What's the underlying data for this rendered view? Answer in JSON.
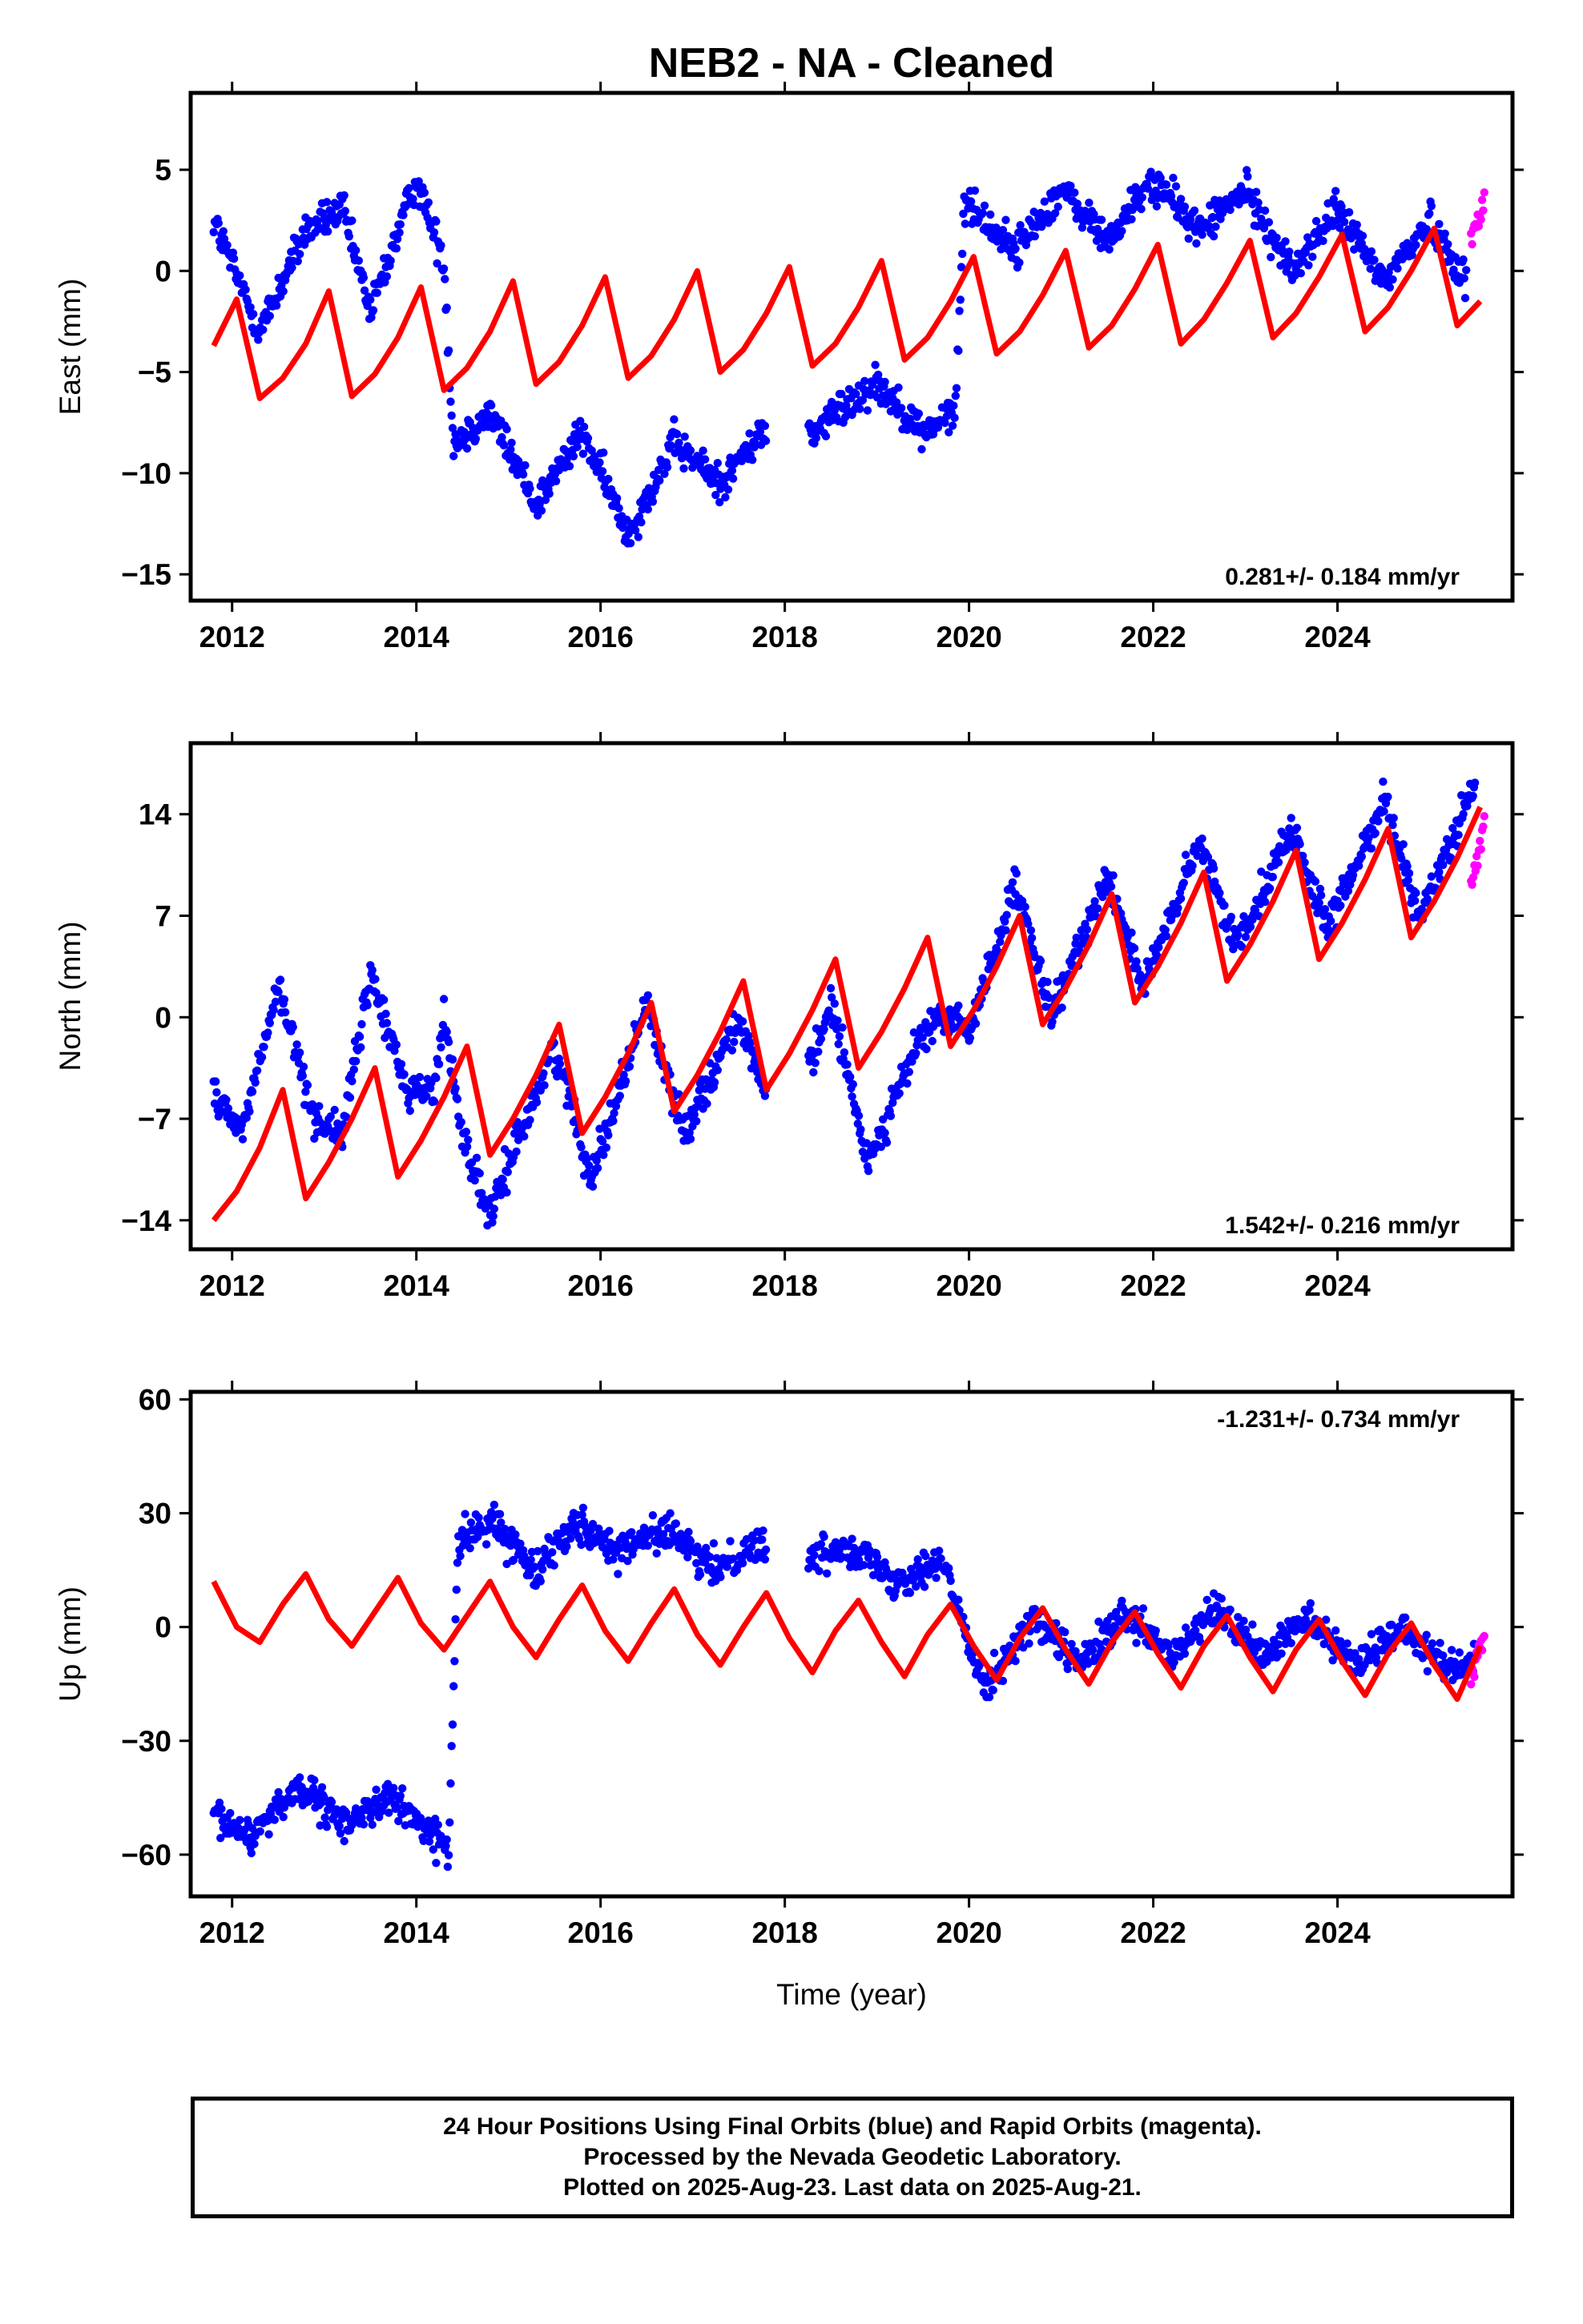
{
  "title": "NEB2  - NA - Cleaned",
  "colors": {
    "final": "#0000ff",
    "rapid": "#ff00ff",
    "model": "#ff0000",
    "frame": "#000000"
  },
  "xlabel": "Time (year)",
  "footer": {
    "line1": "24 Hour Positions Using Final Orbits (blue) and Rapid Orbits (magenta).",
    "line2": "Processed by the Nevada Geodetic Laboratory.",
    "line3": "Plotted on 2025-Aug-23. Last data on 2025-Aug-21."
  },
  "chart_data": [
    {
      "type": "scatter",
      "ylabel": "East (mm)",
      "xlim": [
        2011.55,
        2025.9
      ],
      "ylim": [
        -16.3,
        8.8
      ],
      "xticks": [
        2012,
        2014,
        2016,
        2018,
        2020,
        2022,
        2024
      ],
      "yticks": [
        -15,
        -10,
        -5,
        0,
        5
      ],
      "rate": "0.281+/- 0.184 mm/yr",
      "rate_position": "bottom-right",
      "series": [
        {
          "kind": "final",
          "t": [
            2011.8,
            2012.3,
            2012.8,
            2013.2,
            2013.5,
            2014.0,
            2014.3,
            2014.4,
            2014.8,
            2015.3,
            2015.8,
            2016.3,
            2016.8,
            2017.3,
            2017.75,
            2018.3,
            2018.7,
            2019.0,
            2019.5,
            2019.85,
            2019.95,
            2020.5,
            2021.0,
            2021.5,
            2022.0,
            2022.5,
            2023.0,
            2023.5,
            2024.0,
            2024.5,
            2025.0,
            2025.4
          ],
          "v": [
            2.5,
            -3.0,
            2.0,
            3.0,
            -2.0,
            4.5,
            0.5,
            -8.5,
            -7.0,
            -11.5,
            -8.0,
            -13.0,
            -8.5,
            -10.5,
            -8.0,
            -8.0,
            -6.5,
            -5.5,
            -8.0,
            -7.0,
            3.5,
            1.0,
            4.0,
            1.5,
            4.5,
            2.0,
            4.0,
            0.0,
            3.0,
            -0.5,
            2.5,
            -0.5
          ]
        },
        {
          "kind": "rapid",
          "t": [
            2025.45,
            2025.6
          ],
          "v": [
            1.5,
            3.5
          ]
        },
        {
          "kind": "model",
          "t": [
            2011.8,
            2012.05,
            2012.3,
            2012.55,
            2012.8,
            2013.05,
            2013.3,
            2013.55,
            2013.8,
            2014.05,
            2014.3,
            2014.55,
            2014.8,
            2015.05,
            2015.3,
            2015.55,
            2015.8,
            2016.05,
            2016.3,
            2016.55,
            2016.8,
            2017.05,
            2017.3,
            2017.55,
            2017.8,
            2018.05,
            2018.3,
            2018.55,
            2018.8,
            2019.05,
            2019.3,
            2019.55,
            2019.8,
            2020.05,
            2020.3,
            2020.55,
            2020.8,
            2021.05,
            2021.3,
            2021.55,
            2021.8,
            2022.05,
            2022.3,
            2022.55,
            2022.8,
            2023.05,
            2023.3,
            2023.55,
            2023.8,
            2024.05,
            2024.3,
            2024.55,
            2024.8,
            2025.05,
            2025.3,
            2025.55
          ],
          "v": [
            -3.7,
            -1.4,
            -6.3,
            -5.3,
            -3.6,
            -1.0,
            -6.2,
            -5.1,
            -3.3,
            -0.8,
            -5.9,
            -4.8,
            -3.0,
            -0.5,
            -5.6,
            -4.5,
            -2.7,
            -0.3,
            -5.3,
            -4.2,
            -2.4,
            0.0,
            -5.0,
            -3.9,
            -2.1,
            0.2,
            -4.7,
            -3.6,
            -1.8,
            0.5,
            -4.4,
            -3.3,
            -1.5,
            0.7,
            -4.1,
            -3.0,
            -1.2,
            1.0,
            -3.8,
            -2.7,
            -0.9,
            1.3,
            -3.6,
            -2.4,
            -0.6,
            1.5,
            -3.3,
            -2.1,
            -0.3,
            1.8,
            -3.0,
            -1.8,
            0.0,
            2.1,
            -2.7,
            -1.5
          ]
        }
      ]
    },
    {
      "type": "scatter",
      "ylabel": "North (mm)",
      "xlim": [
        2011.55,
        2025.9
      ],
      "ylim": [
        -16.0,
        18.9
      ],
      "xticks": [
        2012,
        2014,
        2016,
        2018,
        2020,
        2022,
        2024
      ],
      "yticks": [
        -14,
        -7,
        0,
        7,
        14
      ],
      "rate": "1.542+/- 0.216 mm/yr",
      "rate_position": "bottom-right",
      "series": [
        {
          "kind": "final",
          "t": [
            2011.8,
            2012.1,
            2012.5,
            2012.9,
            2013.2,
            2013.5,
            2013.9,
            2014.2,
            2014.3,
            2014.5,
            2014.8,
            2015.0,
            2015.5,
            2015.9,
            2016.5,
            2016.9,
            2017.5,
            2017.75,
            2018.3,
            2018.5,
            2018.9,
            2019.5,
            2019.8,
            2020.0,
            2020.5,
            2020.9,
            2021.5,
            2021.9,
            2022.5,
            2022.9,
            2023.5,
            2023.9,
            2024.5,
            2024.9,
            2025.5
          ],
          "v": [
            -5.0,
            -8.0,
            2.0,
            -7.0,
            -8.0,
            3.0,
            -5.0,
            -5.0,
            0.0,
            -8.0,
            -14.0,
            -10.0,
            -2.0,
            -11.0,
            1.0,
            -8.0,
            0.0,
            -5.0,
            -3.0,
            1.0,
            -10.0,
            -1.0,
            0.0,
            -1.0,
            9.0,
            0.0,
            10.0,
            2.0,
            12.0,
            5.0,
            13.0,
            6.0,
            15.0,
            7.0,
            16.0
          ]
        },
        {
          "kind": "rapid",
          "t": [
            2025.45,
            2025.6
          ],
          "v": [
            9.0,
            13.0
          ]
        },
        {
          "kind": "model",
          "t": [
            2011.8,
            2012.05,
            2012.3,
            2012.55,
            2012.8,
            2013.05,
            2013.3,
            2013.55,
            2013.8,
            2014.05,
            2014.3,
            2014.55,
            2014.8,
            2015.05,
            2015.3,
            2015.55,
            2015.8,
            2016.05,
            2016.3,
            2016.55,
            2016.8,
            2017.05,
            2017.3,
            2017.55,
            2017.8,
            2018.05,
            2018.3,
            2018.55,
            2018.8,
            2019.05,
            2019.3,
            2019.55,
            2019.8,
            2020.05,
            2020.3,
            2020.55,
            2020.8,
            2021.05,
            2021.3,
            2021.55,
            2021.8,
            2022.05,
            2022.3,
            2022.55,
            2022.8,
            2023.05,
            2023.3,
            2023.55,
            2023.8,
            2024.05,
            2024.3,
            2024.55,
            2024.8,
            2025.05,
            2025.3,
            2025.55
          ],
          "v": [
            -14.0,
            -12.0,
            -9.0,
            -5.0,
            -12.5,
            -10.0,
            -7.0,
            -3.5,
            -11.0,
            -8.5,
            -5.5,
            -2.0,
            -9.5,
            -7.0,
            -4.0,
            -0.5,
            -8.0,
            -5.5,
            -2.5,
            1.0,
            -6.5,
            -4.0,
            -1.0,
            2.5,
            -5.0,
            -2.5,
            0.5,
            4.0,
            -3.5,
            -1.0,
            2.0,
            5.5,
            -2.0,
            0.5,
            3.5,
            7.0,
            -0.5,
            2.0,
            5.0,
            8.5,
            1.0,
            3.5,
            6.5,
            10.0,
            2.5,
            5.0,
            8.0,
            11.5,
            4.0,
            6.5,
            9.5,
            13.0,
            5.5,
            8.0,
            11.0,
            14.5
          ]
        }
      ]
    },
    {
      "type": "scatter",
      "ylabel": "Up (mm)",
      "xlim": [
        2011.55,
        2025.9
      ],
      "ylim": [
        -71.0,
        62.0
      ],
      "xticks": [
        2012,
        2014,
        2016,
        2018,
        2020,
        2022,
        2024
      ],
      "yticks": [
        -60,
        -30,
        0,
        30,
        60
      ],
      "rate": "-1.231+/- 0.734 mm/yr",
      "rate_position": "top-right",
      "series": [
        {
          "kind": "final",
          "t": [
            2011.8,
            2012.2,
            2012.7,
            2013.2,
            2013.7,
            2014.2,
            2014.35,
            2014.45,
            2014.8,
            2015.3,
            2015.7,
            2016.2,
            2016.7,
            2017.2,
            2017.7,
            2018.3,
            2018.7,
            2019.2,
            2019.7,
            2020.0,
            2020.2,
            2020.7,
            2021.2,
            2021.7,
            2022.2,
            2022.7,
            2023.2,
            2023.7,
            2024.2,
            2024.7,
            2025.2,
            2025.5
          ],
          "v": [
            -50.0,
            -55.0,
            -42.0,
            -52.0,
            -45.0,
            -55.0,
            -60.0,
            22.0,
            28.0,
            15.0,
            28.0,
            20.0,
            26.0,
            15.0,
            22.0,
            18.0,
            22.0,
            12.0,
            18.0,
            -5.0,
            -15.0,
            2.0,
            -10.0,
            3.0,
            -8.0,
            5.0,
            -8.0,
            3.0,
            -10.0,
            0.0,
            -10.0,
            -10.0
          ]
        },
        {
          "kind": "rapid",
          "t": [
            2025.45,
            2025.6
          ],
          "v": [
            -15.0,
            0.0
          ]
        },
        {
          "kind": "model",
          "t": [
            2011.8,
            2012.05,
            2012.3,
            2012.55,
            2012.8,
            2013.05,
            2013.3,
            2013.55,
            2013.8,
            2014.05,
            2014.3,
            2014.55,
            2014.8,
            2015.05,
            2015.3,
            2015.55,
            2015.8,
            2016.05,
            2016.3,
            2016.55,
            2016.8,
            2017.05,
            2017.3,
            2017.55,
            2017.8,
            2018.05,
            2018.3,
            2018.55,
            2018.8,
            2019.05,
            2019.3,
            2019.55,
            2019.8,
            2020.05,
            2020.3,
            2020.55,
            2020.8,
            2021.05,
            2021.3,
            2021.55,
            2021.8,
            2022.05,
            2022.3,
            2022.55,
            2022.8,
            2023.05,
            2023.3,
            2023.55,
            2023.8,
            2024.05,
            2024.3,
            2024.55,
            2024.8,
            2025.05,
            2025.3,
            2025.55
          ],
          "v": [
            12.0,
            0.0,
            -4.0,
            6.0,
            14.0,
            2.0,
            -5.0,
            4.0,
            13.0,
            1.0,
            -6.0,
            3.0,
            12.0,
            0.0,
            -8.0,
            2.0,
            11.0,
            -1.0,
            -9.0,
            1.0,
            10.0,
            -2.0,
            -10.0,
            0.0,
            9.0,
            -3.0,
            -12.0,
            -1.0,
            7.0,
            -4.0,
            -13.0,
            -2.0,
            6.0,
            -5.0,
            -14.0,
            -3.0,
            5.0,
            -6.0,
            -15.0,
            -4.0,
            4.0,
            -7.0,
            -16.0,
            -5.0,
            3.0,
            -8.0,
            -17.0,
            -6.0,
            2.0,
            -9.0,
            -18.0,
            -7.0,
            1.0,
            -10.0,
            -19.0,
            -5.0
          ]
        }
      ]
    }
  ]
}
